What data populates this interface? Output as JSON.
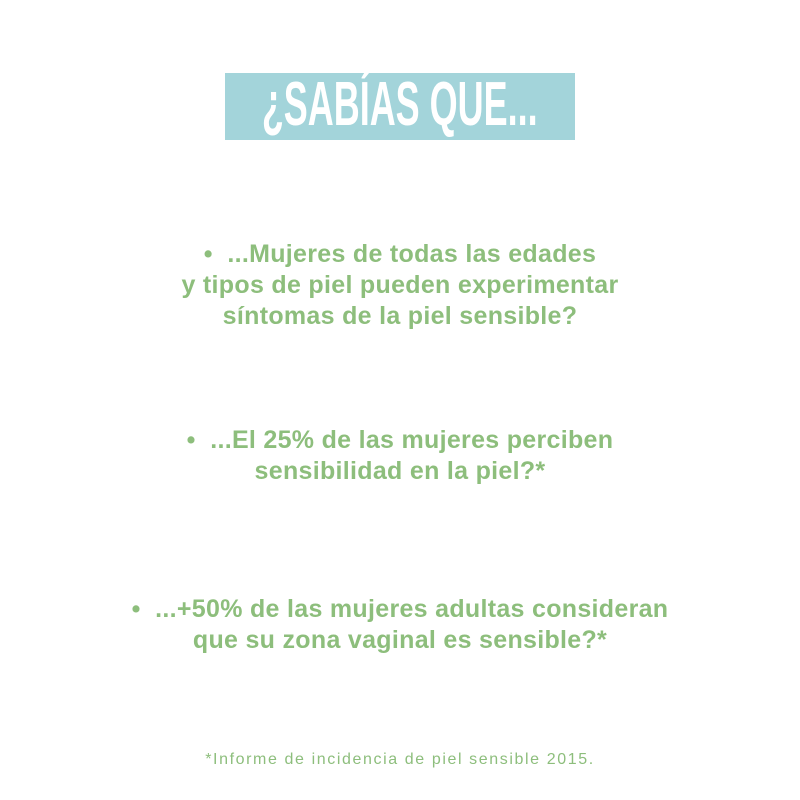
{
  "page": {
    "background_color": "#ffffff"
  },
  "banner": {
    "title": "¿SABÍAS QUE...",
    "bg_color": "#a3d4da",
    "text_color": "#ffffff"
  },
  "facts": {
    "text_color": "#8dbe7c",
    "bullet_char": "•",
    "items": [
      {
        "lines": [
          "•  ...Mujeres de todas las edades",
          "y tipos de piel pueden experimentar",
          "síntomas de la piel sensible?"
        ]
      },
      {
        "lines": [
          "•  ...El 25% de las mujeres perciben",
          "sensibilidad en la piel?*"
        ]
      },
      {
        "lines": [
          "•  ...+50% de las mujeres adultas consideran",
          "que su zona vaginal es sensible?*"
        ]
      }
    ]
  },
  "footnote": {
    "text": "*Informe de incidencia de piel sensible 2015."
  }
}
